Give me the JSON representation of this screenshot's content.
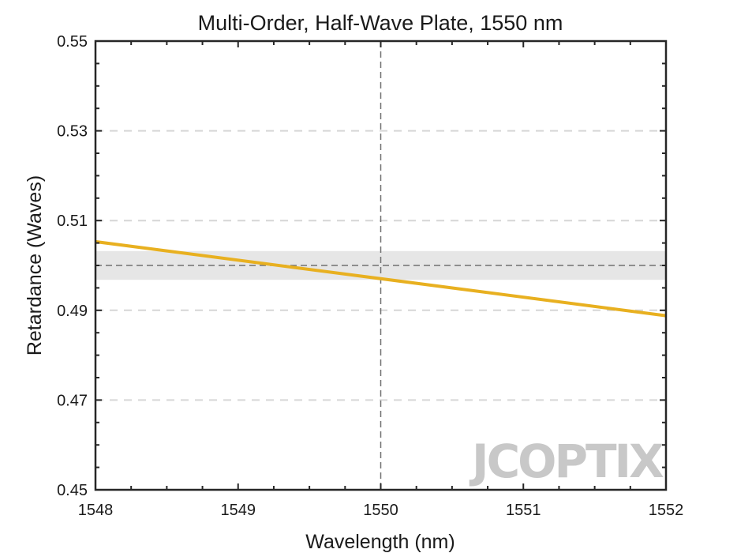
{
  "chart_data": {
    "type": "line",
    "title": "Multi-Order, Half-Wave Plate, 1550 nm",
    "xlabel": "Wavelength (nm)",
    "ylabel": "Retardance (Waves)",
    "xlim": [
      1548,
      1552
    ],
    "ylim": [
      0.45,
      0.55
    ],
    "xticks": [
      1548,
      1549,
      1550,
      1551,
      1552
    ],
    "yticks": [
      0.45,
      0.47,
      0.49,
      0.51,
      0.53,
      0.55
    ],
    "ytick_labels": [
      "0.45",
      "0.47",
      "0.49",
      "0.51",
      "0.53",
      "0.55"
    ],
    "grid": "horizontal-dashed",
    "series": [
      {
        "x": [
          1548,
          1552
        ],
        "y": [
          0.5053,
          0.4888
        ],
        "color": "#E8B020"
      }
    ],
    "reference": {
      "target_y": 0.5,
      "tolerance_band": [
        0.4968,
        0.5032
      ],
      "center_x": 1550
    }
  },
  "watermark": {
    "logo": "JCOPTIX",
    "logo_color": "#c8c8c8",
    "accent_color": "#F5C89A"
  }
}
